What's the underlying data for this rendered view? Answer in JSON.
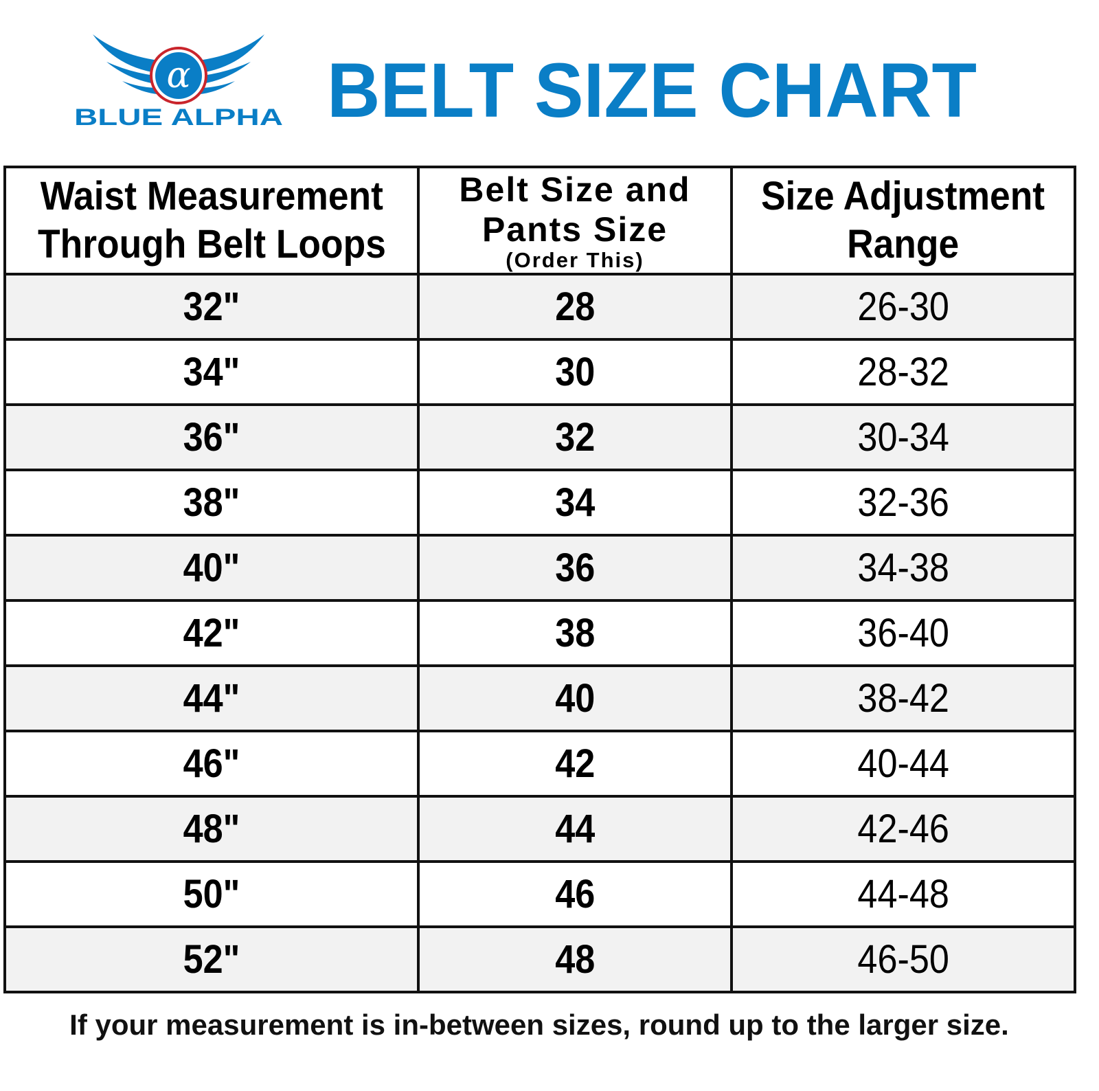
{
  "logo": {
    "brand": "BLUE ALPHA",
    "symbol": "α",
    "colors": {
      "blue": "#0a7ec6",
      "red": "#c9252c"
    }
  },
  "title": "BELT SIZE CHART",
  "accent_color": "#0a7ec6",
  "table": {
    "headers": [
      {
        "line1": "Waist Measurement",
        "line2": "Through Belt Loops"
      },
      {
        "line1": "Belt Size and",
        "line2": "Pants Size",
        "sub": "(Order This)"
      },
      {
        "line1": "Size Adjustment",
        "line2": "Range"
      }
    ],
    "rows": [
      [
        "32\"",
        "28",
        "26-30"
      ],
      [
        "34\"",
        "30",
        "28-32"
      ],
      [
        "36\"",
        "32",
        "30-34"
      ],
      [
        "38\"",
        "34",
        "32-36"
      ],
      [
        "40\"",
        "36",
        "34-38"
      ],
      [
        "42\"",
        "38",
        "36-40"
      ],
      [
        "44\"",
        "40",
        "38-42"
      ],
      [
        "46\"",
        "42",
        "40-44"
      ],
      [
        "48\"",
        "44",
        "42-46"
      ],
      [
        "50\"",
        "46",
        "44-48"
      ],
      [
        "52\"",
        "48",
        "46-50"
      ]
    ]
  },
  "note": "If your measurement is in-between sizes, round up to the larger size."
}
